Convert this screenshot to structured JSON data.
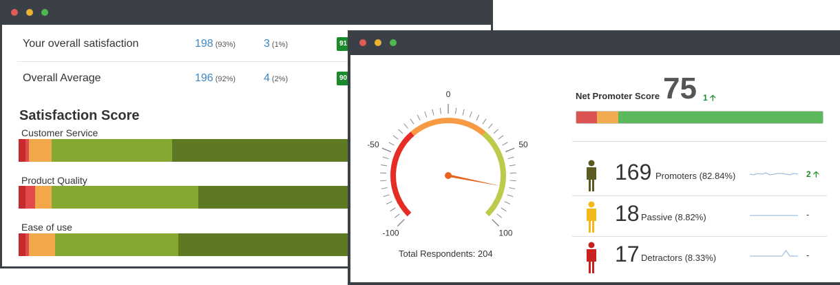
{
  "colors": {
    "titlebar": "#3a4046",
    "dot_red": "#e05b56",
    "dot_yellow": "#e9b232",
    "dot_green": "#4cb84f",
    "link": "#3d87c2",
    "green": "#1a8a2b"
  },
  "overview": {
    "rows": [
      {
        "label": "Your overall satisfaction",
        "count1": "198",
        "pct1": "(93%)",
        "count2": "3",
        "pct2": "(1%)",
        "chip": "91"
      },
      {
        "label": "Overall Average",
        "count1": "196",
        "pct1": "(92%)",
        "count2": "4",
        "pct2": "(2%)",
        "chip": "90"
      }
    ]
  },
  "satisfaction": {
    "title": "Satisfaction Score",
    "bars": [
      {
        "label": "Customer Service",
        "segments": [
          {
            "color": "#c62a2f",
            "value": 2
          },
          {
            "color": "#e24b4b",
            "value": 1
          },
          {
            "color": "#f3a74b",
            "value": 7
          },
          {
            "color": "#85a832",
            "value": 36
          },
          {
            "color": "#5d7a22",
            "value": 54
          }
        ]
      },
      {
        "label": "Product Quality",
        "segments": [
          {
            "color": "#c62a2f",
            "value": 2
          },
          {
            "color": "#e24b4b",
            "value": 3
          },
          {
            "color": "#f3a74b",
            "value": 5
          },
          {
            "color": "#85a832",
            "value": 44
          },
          {
            "color": "#5d7a22",
            "value": 46
          }
        ]
      },
      {
        "label": "Ease of use",
        "segments": [
          {
            "color": "#c62a2f",
            "value": 2
          },
          {
            "color": "#e24b4b",
            "value": 1
          },
          {
            "color": "#f3a74b",
            "value": 8
          },
          {
            "color": "#85a832",
            "value": 37
          },
          {
            "color": "#5d7a22",
            "value": 52
          }
        ]
      }
    ]
  },
  "gauge": {
    "ticks": [
      "-100",
      "-50",
      "0",
      "50",
      "100"
    ],
    "min": -100,
    "max": 100,
    "value": 75,
    "total_label": "Total Respondents: 204"
  },
  "nps": {
    "label": "Net Promoter Score",
    "score": "75",
    "delta": "1",
    "distribution": {
      "detractors": 8.33,
      "passive": 8.82,
      "promoters": 82.84
    },
    "rows": [
      {
        "kind": "promoters",
        "count": "169",
        "label": "Promoters (82.84%)",
        "trend": "2",
        "person_color": "#5a5a22",
        "spark": [
          10,
          11,
          9,
          10,
          8,
          11,
          10,
          9,
          9,
          10,
          11,
          9,
          10
        ]
      },
      {
        "kind": "passive",
        "count": "18",
        "label": "Passive (8.82%)",
        "trend": "-",
        "person_color": "#f2b81c",
        "spark": [
          10,
          10,
          10,
          10,
          10,
          10,
          10,
          10,
          10,
          10,
          10,
          10,
          10
        ]
      },
      {
        "kind": "detractors",
        "count": "17",
        "label": "Detractors (8.33%)",
        "trend": "-",
        "person_color": "#c8211f",
        "spark": [
          10,
          10,
          10,
          10,
          10,
          10,
          10,
          10,
          10,
          2,
          10,
          10,
          10
        ]
      }
    ]
  }
}
